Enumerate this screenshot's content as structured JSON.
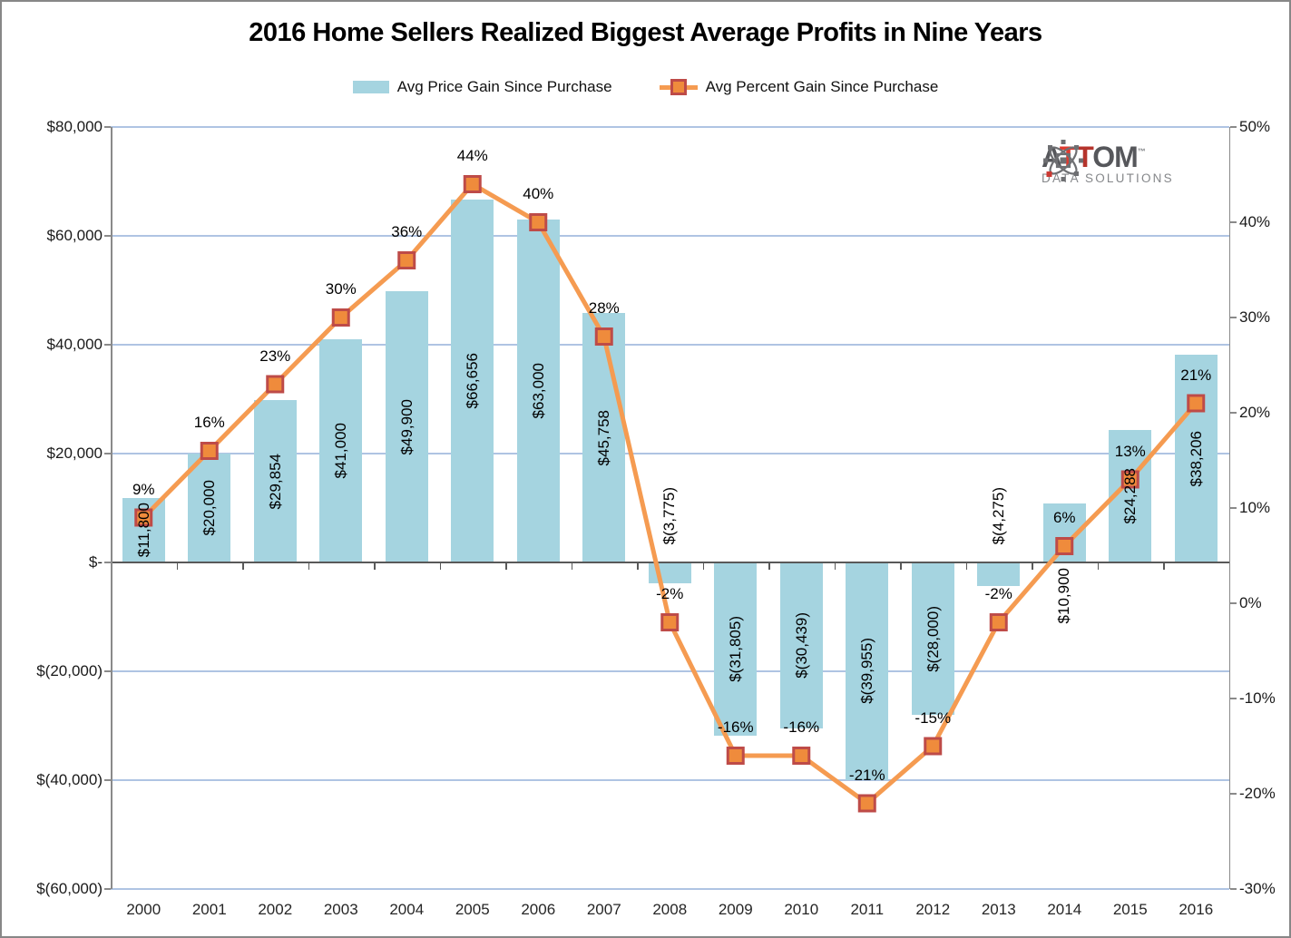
{
  "title": "2016 Home Sellers Realized Biggest Average Profits in Nine Years",
  "legend": {
    "bar": "Avg Price Gain Since Purchase",
    "line": "Avg Percent Gain Since Purchase"
  },
  "logo": {
    "letters": [
      {
        "ch": "A",
        "color": "#56575B"
      },
      {
        "ch": "T",
        "color": "#E03A2F"
      },
      {
        "ch": "T",
        "color": "#B5342C"
      },
      {
        "ch": "O",
        "color": "#56575B"
      },
      {
        "ch": "M",
        "color": "#56575B"
      }
    ],
    "tm": "™",
    "subtitle": "DATA SOLUTIONS"
  },
  "chart_data": {
    "type": "bar+line",
    "title": "2016 Home Sellers Realized Biggest Average Profits in Nine Years",
    "categories": [
      "2000",
      "2001",
      "2002",
      "2003",
      "2004",
      "2005",
      "2006",
      "2007",
      "2008",
      "2009",
      "2010",
      "2011",
      "2012",
      "2013",
      "2014",
      "2015",
      "2016"
    ],
    "series": [
      {
        "name": "Avg Price Gain Since Purchase",
        "type": "bar",
        "axis": "left",
        "values": [
          11800,
          20000,
          29854,
          41000,
          49900,
          66656,
          63000,
          45758,
          -3775,
          -31805,
          -30439,
          -39955,
          -28000,
          -4275,
          10900,
          24288,
          38206
        ],
        "labels": [
          "$11,800",
          "$20,000",
          "$29,854",
          "$41,000",
          "$49,900",
          "$66,656",
          "$63,000",
          "$45,758",
          "$(3,775)",
          "$(31,805)",
          "$(30,439)",
          "$(39,955)",
          "$(28,000)",
          "$(4,275)",
          "$10,900",
          "$24,288",
          "$38,206"
        ]
      },
      {
        "name": "Avg Percent Gain Since Purchase",
        "type": "line",
        "axis": "right",
        "values": [
          9,
          16,
          23,
          30,
          36,
          44,
          40,
          28,
          -2,
          -16,
          -16,
          -21,
          -15,
          -2,
          6,
          13,
          21
        ],
        "labels": [
          "9%",
          "16%",
          "23%",
          "30%",
          "36%",
          "44%",
          "40%",
          "28%",
          "-2%",
          "-16%",
          "-16%",
          "-21%",
          "-15%",
          "-2%",
          "6%",
          "13%",
          "21%"
        ]
      }
    ],
    "left_axis": {
      "range": [
        -60000,
        80000
      ],
      "ticks": [
        {
          "value": 80000,
          "label": "$80,000"
        },
        {
          "value": 60000,
          "label": "$60,000"
        },
        {
          "value": 40000,
          "label": "$40,000"
        },
        {
          "value": 20000,
          "label": "$20,000"
        },
        {
          "value": 0,
          "label": "$-"
        },
        {
          "value": -20000,
          "label": "$(20,000)"
        },
        {
          "value": -40000,
          "label": "$(40,000)"
        },
        {
          "value": -60000,
          "label": "$(60,000)"
        }
      ]
    },
    "right_axis": {
      "range": [
        -30,
        50
      ],
      "ticks": [
        {
          "value": 50,
          "label": "50%"
        },
        {
          "value": 40,
          "label": "40%"
        },
        {
          "value": 30,
          "label": "30%"
        },
        {
          "value": 20,
          "label": "20%"
        },
        {
          "value": 10,
          "label": "10%"
        },
        {
          "value": 0,
          "label": "0%"
        },
        {
          "value": -10,
          "label": "-10%"
        },
        {
          "value": -20,
          "label": "-20%"
        },
        {
          "value": -30,
          "label": "-30%"
        }
      ]
    },
    "grid": true,
    "legend_position": "top",
    "colors": {
      "bar": "#A5D4E0",
      "line": "#F59B51",
      "marker_fill": "#EF8B3C",
      "marker_border": "#BE4B48",
      "grid": "#AFC4E3",
      "axis": "#8A8A8A",
      "zero_axis": "#595959"
    }
  }
}
